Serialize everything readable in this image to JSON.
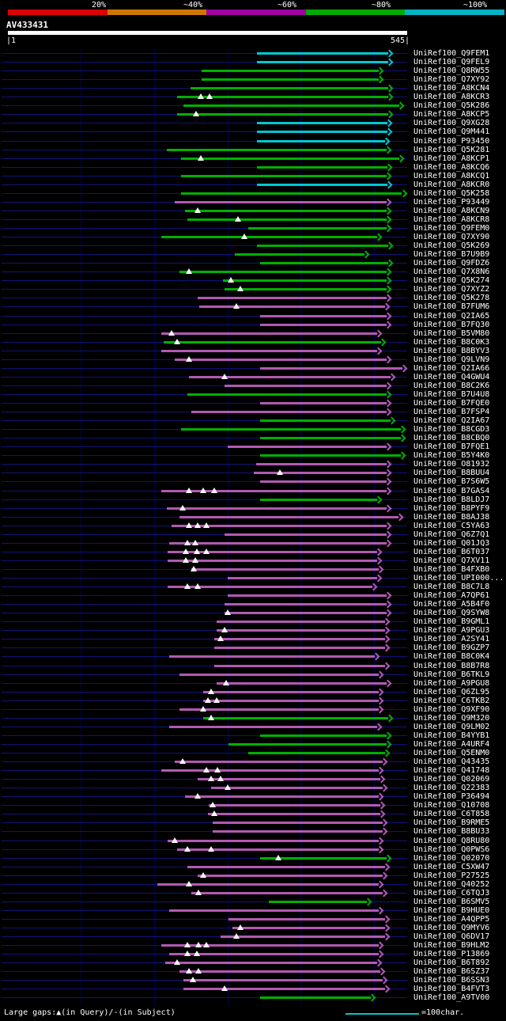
{
  "scale": {
    "labels": [
      "20%",
      "~40%",
      "~60%",
      "~80%",
      "~100%"
    ],
    "colors": [
      "#dd0000",
      "#cc7700",
      "#a000a0",
      "#00aa00",
      "#00b4c4"
    ]
  },
  "query": {
    "name": "AV433431",
    "start": "1",
    "end": "545",
    "left_ruler": "|1",
    "right_ruler": "545|"
  },
  "footer": {
    "gaps_legend": "Large gaps:▲(in Query)/-(in Subject)",
    "char_scale_label": "=100char."
  },
  "chart_data": {
    "type": "bar",
    "subtype": "blast-alignment-coverage-map",
    "title": "AV433431",
    "x_axis": {
      "min": 1,
      "max": 545,
      "unit": "query position (chars)",
      "gridlines": [
        100,
        200,
        300,
        400,
        500
      ]
    },
    "identity_bins": {
      "c": "~100%",
      "g": "~80%",
      "p": "~60%"
    },
    "color_hex": {
      "c": "#00c8d2",
      "g": "#00b000",
      "p": "#b25ab2"
    },
    "label_prefix": "UniRef100_",
    "hit_format": [
      "accession",
      "query_start",
      "query_end",
      "identity_bin",
      "gap_positions_in_query"
    ],
    "hits": [
      [
        "Q9FEM1",
        340,
        519,
        "c",
        []
      ],
      [
        "Q9FEL9",
        340,
        519,
        "c",
        []
      ],
      [
        "Q8RW55",
        265,
        506,
        "g",
        []
      ],
      [
        "Q7XY92",
        265,
        506,
        "g",
        []
      ],
      [
        "A8KCN4",
        250,
        519,
        "g",
        []
      ],
      [
        "A8KCR3",
        232,
        519,
        "g",
        [
          264,
          276
        ]
      ],
      [
        "Q5K286",
        240,
        534,
        "g",
        []
      ],
      [
        "A8KCP5",
        232,
        519,
        "g",
        [
          257
        ]
      ],
      [
        "Q9XG28",
        340,
        518,
        "c",
        []
      ],
      [
        "Q9M441",
        340,
        518,
        "c",
        []
      ],
      [
        "P93450",
        340,
        515,
        "c",
        []
      ],
      [
        "Q5K281",
        218,
        517,
        "g",
        []
      ],
      [
        "A8KCP1",
        237,
        534,
        "g",
        [
          264
        ]
      ],
      [
        "A8KCQ6",
        340,
        518,
        "g",
        []
      ],
      [
        "A8KCQ1",
        237,
        517,
        "g",
        []
      ],
      [
        "A8KCR0",
        340,
        518,
        "c",
        []
      ],
      [
        "Q5K258",
        237,
        538,
        "g",
        []
      ],
      [
        "P93449",
        228,
        517,
        "p",
        []
      ],
      [
        "A8KCN9",
        242,
        517,
        "g",
        [
          259
        ]
      ],
      [
        "A8KCR8",
        246,
        517,
        "g",
        [
          315
        ]
      ],
      [
        "Q9FEM0",
        328,
        517,
        "g",
        []
      ],
      [
        "Q7XY90",
        210,
        504,
        "g",
        [
          323
        ]
      ],
      [
        "Q5K269",
        340,
        519,
        "g",
        []
      ],
      [
        "B7U9B9",
        310,
        487,
        "g",
        []
      ],
      [
        "Q9FDZ6",
        345,
        519,
        "g",
        []
      ],
      [
        "Q7X8N6",
        235,
        517,
        "g",
        [
          248
        ]
      ],
      [
        "Q5K274",
        294,
        517,
        "g",
        [
          305
        ]
      ],
      [
        "Q7XYZ2",
        296,
        517,
        "g",
        [
          318
        ]
      ],
      [
        "Q5K278",
        259,
        517,
        "p",
        []
      ],
      [
        "B7FUM6",
        262,
        515,
        "p",
        [
          312
        ]
      ],
      [
        "Q2IA65",
        345,
        517,
        "p",
        []
      ],
      [
        "B7FQ30",
        345,
        517,
        "p",
        []
      ],
      [
        "B5VM80",
        210,
        504,
        "p",
        [
          224
        ]
      ],
      [
        "B8C0K3",
        213,
        509,
        "g",
        [
          232
        ]
      ],
      [
        "B8BYV3",
        210,
        504,
        "p",
        []
      ],
      [
        "Q9LVN9",
        228,
        517,
        "p",
        [
          248
        ]
      ],
      [
        "Q2IA66",
        345,
        539,
        "p",
        []
      ],
      [
        "Q4GWU4",
        248,
        522,
        "p",
        [
          296
        ]
      ],
      [
        "B8C2K6",
        296,
        517,
        "p",
        []
      ],
      [
        "B7U4U8",
        246,
        517,
        "g",
        []
      ],
      [
        "B7FQE0",
        345,
        517,
        "p",
        []
      ],
      [
        "B7FSP4",
        251,
        517,
        "p",
        []
      ],
      [
        "Q2IA67",
        345,
        522,
        "g",
        []
      ],
      [
        "B8CGD3",
        237,
        536,
        "g",
        []
      ],
      [
        "B8CBQ0",
        345,
        536,
        "g",
        []
      ],
      [
        "B7FQE1",
        300,
        517,
        "p",
        []
      ],
      [
        "B5Y4K0",
        345,
        536,
        "g",
        []
      ],
      [
        "O81932",
        339,
        517,
        "p",
        []
      ],
      [
        "B8BUU4",
        336,
        517,
        "p",
        [
          372
        ]
      ],
      [
        "B7S6W5",
        345,
        517,
        "p",
        []
      ],
      [
        "B7GAS4",
        210,
        517,
        "p",
        [
          248,
          267,
          282
        ]
      ],
      [
        "B8LDJ7",
        345,
        504,
        "g",
        []
      ],
      [
        "B8PYF9",
        218,
        517,
        "p",
        [
          239
        ]
      ],
      [
        "B8AJ38",
        235,
        533,
        "p",
        []
      ],
      [
        "C5YA63",
        224,
        517,
        "p",
        [
          248,
          260,
          271
        ]
      ],
      [
        "Q6Z7Q1",
        296,
        517,
        "p",
        []
      ],
      [
        "Q01JQ3",
        221,
        517,
        "p",
        [
          245,
          256
        ]
      ],
      [
        "B6T037",
        219,
        504,
        "p",
        [
          243,
          258,
          271
        ]
      ],
      [
        "Q7XV11",
        219,
        504,
        "p",
        [
          243,
          256
        ]
      ],
      [
        "B4FXB0",
        251,
        506,
        "p",
        [
          254
        ]
      ],
      [
        "UPI000...",
        300,
        504,
        "p",
        []
      ],
      [
        "B8C7L8",
        219,
        498,
        "p",
        [
          245,
          260
        ]
      ],
      [
        "A7QP61",
        300,
        517,
        "p",
        []
      ],
      [
        "A5B4F0",
        296,
        517,
        "p",
        []
      ],
      [
        "Q9SYW8",
        296,
        517,
        "p",
        [
          300
        ]
      ],
      [
        "B9GML1",
        285,
        515,
        "p",
        []
      ],
      [
        "A9PGU3",
        285,
        515,
        "p",
        [
          296
        ]
      ],
      [
        "A2SY41",
        282,
        515,
        "p",
        [
          291
        ]
      ],
      [
        "B9GZP7",
        282,
        515,
        "p",
        []
      ],
      [
        "B8C0K4",
        221,
        501,
        "p",
        []
      ],
      [
        "B8B7R8",
        282,
        515,
        "p",
        []
      ],
      [
        "B6TKL9",
        235,
        506,
        "p",
        []
      ],
      [
        "A9PGU8",
        285,
        517,
        "p",
        [
          298
        ]
      ],
      [
        "Q6ZL95",
        267,
        506,
        "p",
        [
          278
        ]
      ],
      [
        "C6TKB2",
        267,
        506,
        "p",
        [
          274,
          285
        ]
      ],
      [
        "Q9XF90",
        235,
        506,
        "p",
        [
          267
        ]
      ],
      [
        "Q9M320",
        267,
        519,
        "g",
        [
          278
        ]
      ],
      [
        "Q9LM02",
        221,
        504,
        "p",
        []
      ],
      [
        "B4YYB1",
        345,
        517,
        "g",
        []
      ],
      [
        "A4URF4",
        302,
        517,
        "g",
        []
      ],
      [
        "Q5ENM0",
        328,
        515,
        "g",
        []
      ],
      [
        "Q43435",
        228,
        512,
        "p",
        [
          239
        ]
      ],
      [
        "Q41748",
        210,
        506,
        "p",
        [
          271,
          286
        ]
      ],
      [
        "Q02069",
        259,
        508,
        "p",
        [
          278,
          291
        ]
      ],
      [
        "Q22383",
        278,
        512,
        "p",
        [
          300
        ]
      ],
      [
        "P36494",
        242,
        506,
        "p",
        [
          259
        ]
      ],
      [
        "Q10708",
        275,
        508,
        "p",
        [
          280
        ]
      ],
      [
        "C6T858",
        273,
        508,
        "p",
        [
          282
        ]
      ],
      [
        "B9RME5",
        280,
        512,
        "p",
        []
      ],
      [
        "B8BU33",
        280,
        512,
        "p",
        []
      ],
      [
        "Q8RU80",
        219,
        506,
        "p",
        [
          228
        ]
      ],
      [
        "Q0PWS6",
        232,
        506,
        "p",
        [
          246,
          278
        ]
      ],
      [
        "Q02070",
        345,
        517,
        "g",
        [
          369
        ]
      ],
      [
        "C5XW47",
        246,
        515,
        "p",
        []
      ],
      [
        "P27525",
        259,
        512,
        "p",
        [
          267
        ]
      ],
      [
        "Q40252",
        205,
        506,
        "p",
        [
          248
        ]
      ],
      [
        "C6TQJ3",
        251,
        512,
        "p",
        [
          261
        ]
      ],
      [
        "B6SMV5",
        356,
        490,
        "g",
        []
      ],
      [
        "B9HUE0",
        221,
        506,
        "p",
        []
      ],
      [
        "A4QPP5",
        302,
        515,
        "p",
        []
      ],
      [
        "Q9MYV6",
        307,
        515,
        "p",
        [
          318
        ]
      ],
      [
        "Q6DV17",
        291,
        515,
        "p",
        [
          312
        ]
      ],
      [
        "B9HLM2",
        210,
        506,
        "p",
        [
          245,
          261,
          271
        ]
      ],
      [
        "P13869",
        221,
        506,
        "p",
        [
          245,
          258
        ]
      ],
      [
        "B6T892",
        215,
        504,
        "p",
        [
          231
        ]
      ],
      [
        "B6SZ37",
        235,
        508,
        "p",
        [
          248,
          261
        ]
      ],
      [
        "B6SSN3",
        240,
        512,
        "p",
        [
          253
        ]
      ],
      [
        "B4FVT3",
        240,
        515,
        "p",
        [
          296
        ]
      ],
      [
        "A9TV00",
        345,
        495,
        "g",
        []
      ]
    ]
  }
}
